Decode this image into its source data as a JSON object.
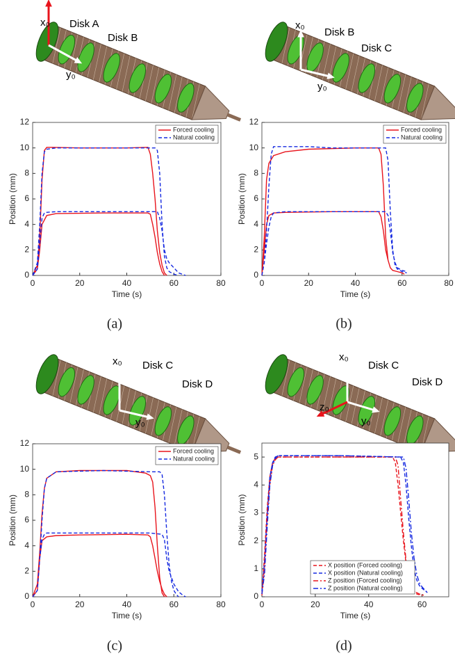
{
  "chart_data": [
    {
      "type": "line",
      "panel_label": "(a)",
      "annotations": [
        "x₀",
        "Disk A",
        "Disk B",
        "y₀"
      ],
      "xlabel": "Time (s)",
      "ylabel": "Position (mm)",
      "xlim": [
        0,
        80
      ],
      "ylim": [
        0,
        12
      ],
      "xticks": [
        0,
        20,
        40,
        60,
        80
      ],
      "yticks": [
        0,
        2,
        4,
        6,
        8,
        10,
        12
      ],
      "legend": "upper right",
      "series": [
        {
          "name": "Forced cooling",
          "color": "#e8141c",
          "style": "solid",
          "x": [
            0,
            2,
            3,
            4,
            5,
            6,
            8,
            20,
            40,
            49,
            50,
            51,
            52,
            53,
            54,
            55,
            56,
            57,
            null,
            0,
            2,
            3,
            4,
            6,
            10,
            30,
            49,
            50,
            51,
            52,
            53,
            54,
            55,
            56
          ],
          "values": [
            0,
            0.8,
            3,
            7.5,
            9.8,
            10.05,
            10.05,
            10,
            10,
            10.05,
            9.5,
            8,
            6,
            3.5,
            1.8,
            0.8,
            0.2,
            0,
            null,
            0,
            0.5,
            2,
            4,
            4.7,
            4.85,
            4.9,
            4.9,
            4.8,
            4,
            3,
            1.8,
            0.9,
            0.3,
            0
          ]
        },
        {
          "name": "Natural cooling",
          "color": "#1428e0",
          "style": "dashed",
          "x": [
            0,
            2,
            3,
            4,
            5,
            6,
            10,
            30,
            50,
            52,
            53,
            54,
            55,
            56,
            57,
            58,
            60,
            62,
            null,
            0,
            2,
            3,
            4,
            5,
            6,
            10,
            30,
            50,
            53,
            54,
            55,
            56,
            57,
            58,
            60,
            62,
            65
          ],
          "values": [
            0,
            1,
            4,
            8,
            9.7,
            9.9,
            10,
            10,
            10,
            10,
            9.8,
            8,
            4,
            1.5,
            0.6,
            0.3,
            0.1,
            0,
            null,
            0,
            0.5,
            2.5,
            4.5,
            4.9,
            4.95,
            5,
            5,
            5,
            5,
            4.5,
            3.5,
            2,
            1.3,
            1,
            0.6,
            0.2,
            0
          ]
        }
      ]
    },
    {
      "type": "line",
      "panel_label": "(b)",
      "annotations": [
        "x₀",
        "Disk B",
        "Disk C",
        "y₀"
      ],
      "xlabel": "Time (s)",
      "ylabel": "Position (mm)",
      "xlim": [
        0,
        80
      ],
      "ylim": [
        0,
        12
      ],
      "xticks": [
        0,
        20,
        40,
        60,
        80
      ],
      "yticks": [
        0,
        2,
        4,
        6,
        8,
        10,
        12
      ],
      "legend": "upper right",
      "series": [
        {
          "name": "Forced cooling",
          "color": "#e8141c",
          "style": "solid",
          "x": [
            0,
            1,
            2,
            3,
            5,
            10,
            20,
            40,
            50,
            51,
            52,
            53,
            54,
            55,
            56,
            58,
            60,
            61,
            null,
            0,
            1,
            2,
            3,
            5,
            10,
            30,
            50,
            51,
            52,
            53,
            54,
            55,
            56,
            58,
            60,
            61
          ],
          "values": [
            0,
            3,
            7.5,
            8.8,
            9.4,
            9.7,
            9.9,
            10,
            10,
            9.5,
            7,
            3,
            1.2,
            0.6,
            0.4,
            0.3,
            0.2,
            0.1,
            null,
            0,
            2,
            4,
            4.7,
            4.9,
            4.95,
            5,
            5,
            4.6,
            3.5,
            2,
            1.2,
            0.6,
            0.4,
            0.3,
            0.2,
            0.1
          ]
        },
        {
          "name": "Natural cooling",
          "color": "#1428e0",
          "style": "dashed",
          "x": [
            0,
            1,
            2,
            3,
            4,
            5,
            10,
            20,
            30,
            50,
            53,
            54,
            55,
            56,
            57,
            58,
            60,
            62,
            null,
            0,
            1,
            2,
            3,
            4,
            5,
            10,
            30,
            53,
            54,
            55,
            56,
            57,
            58,
            60,
            62
          ],
          "values": [
            0,
            1,
            3.5,
            7,
            9.5,
            10.1,
            10.1,
            10.1,
            10,
            10,
            10,
            9,
            5,
            2,
            0.8,
            0.5,
            0.3,
            0.2,
            null,
            0,
            1,
            2.5,
            3.8,
            4.6,
            4.9,
            5,
            5,
            5,
            4.7,
            3.5,
            1.8,
            1,
            0.6,
            0.4,
            0.3
          ]
        }
      ]
    },
    {
      "type": "line",
      "panel_label": "(c)",
      "annotations": [
        "x₀",
        "Disk C",
        "Disk D",
        "y₀"
      ],
      "xlabel": "Time (s)",
      "ylabel": "Position (mm)",
      "xlim": [
        0,
        80
      ],
      "ylim": [
        0,
        12
      ],
      "xticks": [
        0,
        20,
        40,
        60,
        80
      ],
      "yticks": [
        0,
        2,
        4,
        6,
        8,
        10,
        12
      ],
      "legend": "upper right",
      "series": [
        {
          "name": "Forced cooling",
          "color": "#e8141c",
          "style": "solid",
          "x": [
            0,
            1,
            2,
            3,
            4,
            5,
            6,
            10,
            20,
            40,
            48,
            50,
            51,
            52,
            53,
            54,
            55,
            56,
            null,
            0,
            2,
            3,
            4,
            6,
            10,
            20,
            40,
            49,
            50,
            51,
            52,
            53,
            54,
            55,
            56,
            57
          ],
          "values": [
            0,
            0.5,
            1,
            3.5,
            6.5,
            8.5,
            9.3,
            9.8,
            9.9,
            9.9,
            9.7,
            9.5,
            9,
            7,
            4,
            1.5,
            0.3,
            0,
            null,
            0,
            0.5,
            3,
            4.4,
            4.7,
            4.8,
            4.85,
            4.9,
            4.85,
            4.7,
            4,
            3,
            2,
            1.2,
            0.6,
            0.2,
            0
          ]
        },
        {
          "name": "Natural cooling",
          "color": "#1428e0",
          "style": "dashed",
          "x": [
            0,
            2,
            3,
            4,
            5,
            6,
            10,
            30,
            50,
            54,
            55,
            56,
            57,
            58,
            59,
            60,
            61,
            62,
            null,
            0,
            2,
            3,
            4,
            5,
            6,
            10,
            30,
            50,
            55,
            56,
            57,
            58,
            60,
            62,
            64,
            65
          ],
          "values": [
            0,
            0.5,
            3,
            6,
            8.5,
            9.3,
            9.8,
            9.9,
            9.8,
            9.8,
            9.6,
            8,
            5,
            2.5,
            1.2,
            0.5,
            0.2,
            0,
            null,
            0,
            0.5,
            3,
            4.5,
            4.9,
            5,
            5,
            5,
            5,
            4.9,
            4.5,
            3,
            2,
            1,
            0.4,
            0.1,
            0
          ]
        }
      ]
    },
    {
      "type": "line",
      "panel_label": "(d)",
      "annotations": [
        "x₀",
        "Disk C",
        "Disk D",
        "z₀",
        "y₀"
      ],
      "xlabel": "Time (s)",
      "ylabel": "Position (mm)",
      "xlim": [
        0,
        70
      ],
      "ylim": [
        0,
        5.5
      ],
      "xticks": [
        0,
        20,
        40,
        60
      ],
      "yticks": [
        0,
        1,
        2,
        3,
        4,
        5
      ],
      "legend": "lower left",
      "series": [
        {
          "name": "X position (Forced cooling)",
          "color": "#e8141c",
          "style": "dashed",
          "x": [
            0,
            1,
            2,
            3,
            4,
            5,
            6,
            10,
            30,
            49,
            50,
            51,
            52,
            53,
            54,
            55,
            56,
            58,
            60
          ],
          "values": [
            0.1,
            1.5,
            3.2,
            4.3,
            4.8,
            4.95,
            5,
            5,
            5,
            5,
            4.8,
            4,
            3,
            2,
            1.2,
            0.6,
            0.3,
            0.1,
            0.05
          ]
        },
        {
          "name": "X position (Natural cooling)",
          "color": "#1428e0",
          "style": "dashed",
          "x": [
            0,
            1,
            2,
            3,
            4,
            5,
            6,
            10,
            30,
            52,
            53,
            54,
            55,
            56,
            57,
            58,
            59,
            60,
            62
          ],
          "values": [
            0.2,
            1.3,
            3,
            4.3,
            4.8,
            5,
            5.05,
            5.05,
            5.05,
            5,
            4.8,
            4,
            2.8,
            1.8,
            1,
            0.6,
            0.4,
            0.3,
            0.15
          ]
        },
        {
          "name": "Z position (Forced cooling)",
          "color": "#e8141c",
          "style": "dashdot",
          "x": [
            0,
            1,
            2,
            3,
            4,
            5,
            6,
            10,
            30,
            50,
            51,
            52,
            53,
            54,
            55,
            56,
            57,
            59,
            61
          ],
          "values": [
            0.05,
            1,
            2.8,
            4,
            4.7,
            4.9,
            5,
            5,
            5,
            5,
            4.7,
            3.5,
            2.3,
            1.3,
            0.7,
            0.4,
            0.2,
            0.1,
            0.05
          ]
        },
        {
          "name": "Z position (Natural cooling)",
          "color": "#1428e0",
          "style": "dashdot",
          "x": [
            0,
            1,
            2,
            3,
            4,
            5,
            6,
            10,
            30,
            53,
            54,
            55,
            56,
            57,
            58,
            59,
            60,
            61,
            62
          ],
          "values": [
            0.1,
            0.8,
            2.5,
            4,
            4.7,
            4.95,
            5.05,
            5.05,
            5.05,
            5,
            4.6,
            3.5,
            2.3,
            1.4,
            0.8,
            0.5,
            0.35,
            0.25,
            0.15
          ]
        }
      ]
    }
  ]
}
